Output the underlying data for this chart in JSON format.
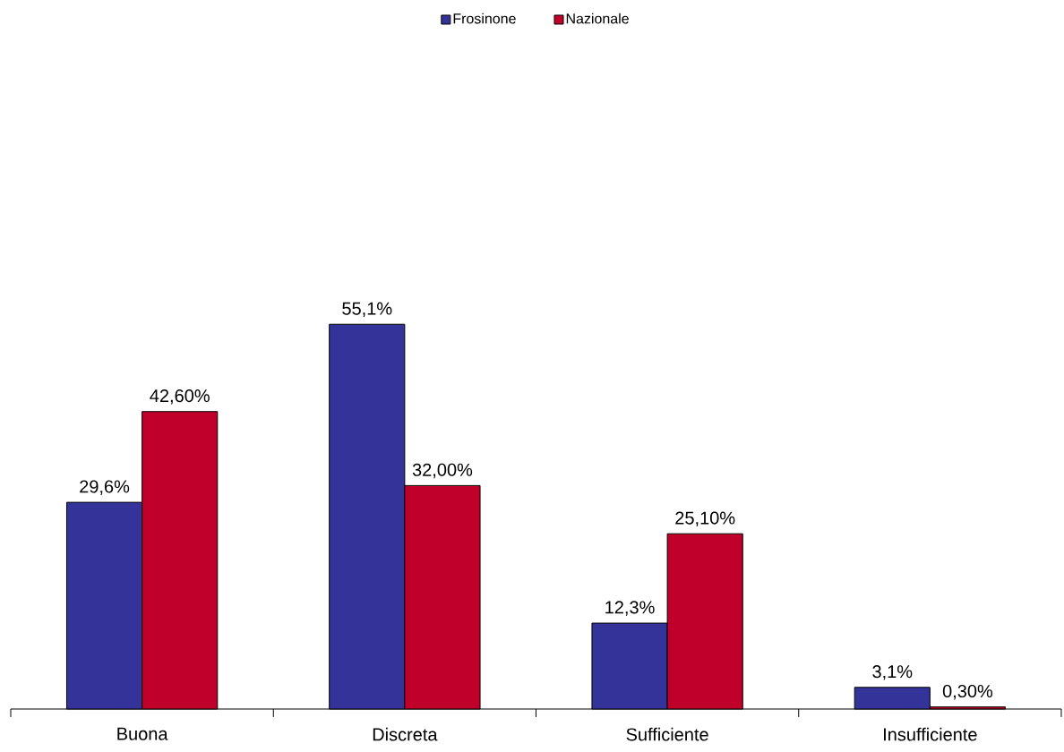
{
  "chart_data": {
    "type": "bar",
    "categories": [
      "Buona",
      "Discreta",
      "Sufficiente",
      "Insufficiente"
    ],
    "series": [
      {
        "name": "Frosinone",
        "color": "#333399",
        "values": [
          29.6,
          55.1,
          12.3,
          3.1
        ],
        "value_labels": [
          "29,6%",
          "55,1%",
          "12,3%",
          "3,1%"
        ]
      },
      {
        "name": "Nazionale",
        "color": "#c0002a",
        "values": [
          42.6,
          32.0,
          25.1,
          0.3
        ],
        "value_labels": [
          "42,60%",
          "32,00%",
          "25,10%",
          "0,30%"
        ]
      }
    ],
    "tick_labels": "x",
    "legend": "top"
  }
}
